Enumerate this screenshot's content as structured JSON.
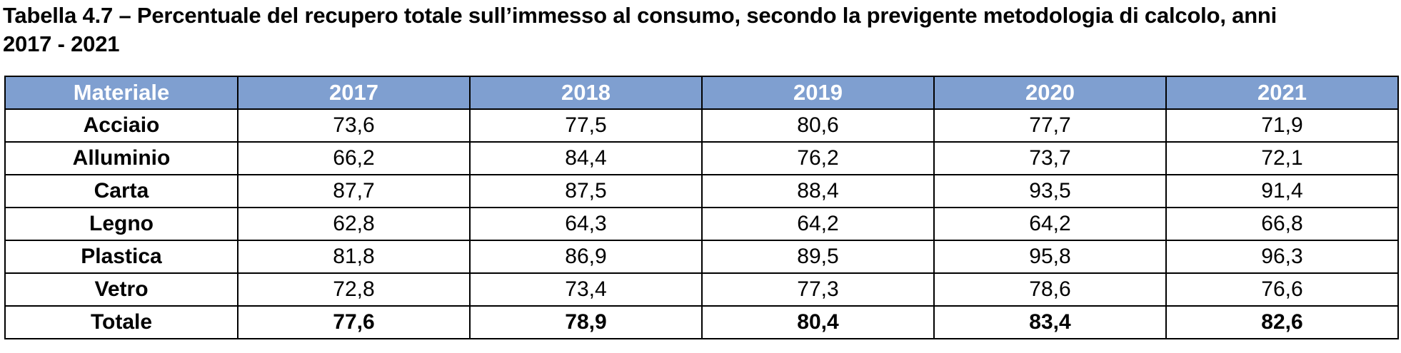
{
  "caption": {
    "line1": "Tabella 4.7 – Percentuale del recupero totale sull’immesso al consumo, secondo la previgente metodologia di calcolo, anni",
    "line2": "2017 - 2021"
  },
  "table": {
    "headers": [
      "Materiale",
      "2017",
      "2018",
      "2019",
      "2020",
      "2021"
    ],
    "rows": [
      {
        "material": "Acciaio",
        "values": [
          "73,6",
          "77,5",
          "80,6",
          "77,7",
          "71,9"
        ]
      },
      {
        "material": "Alluminio",
        "values": [
          "66,2",
          "84,4",
          "76,2",
          "73,7",
          "72,1"
        ]
      },
      {
        "material": "Carta",
        "values": [
          "87,7",
          "87,5",
          "88,4",
          "93,5",
          "91,4"
        ]
      },
      {
        "material": "Legno",
        "values": [
          "62,8",
          "64,3",
          "64,2",
          "64,2",
          "66,8"
        ]
      },
      {
        "material": "Plastica",
        "values": [
          "81,8",
          "86,9",
          "89,5",
          "95,8",
          "96,3"
        ]
      },
      {
        "material": "Vetro",
        "values": [
          "72,8",
          "73,4",
          "77,3",
          "78,6",
          "76,6"
        ]
      }
    ],
    "total": {
      "material": "Totale",
      "values": [
        "77,6",
        "78,9",
        "80,4",
        "83,4",
        "82,6"
      ]
    }
  },
  "colors": {
    "header_bg": "#7f9fd0",
    "header_text": "#ffffff",
    "border": "#000000"
  }
}
